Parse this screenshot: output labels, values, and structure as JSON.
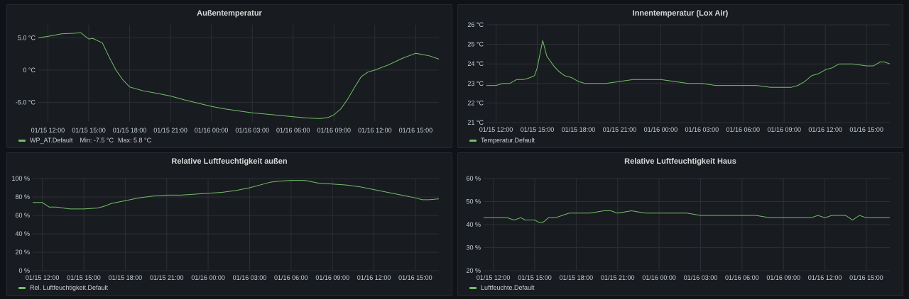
{
  "panels": [
    {
      "title": "Außentemperatur",
      "legend": "WP_AT.Default",
      "legend_min": "Min: -7.5 °C",
      "legend_max": "Max: 5.8 °C"
    },
    {
      "title": "Innentemperatur (Lox Air)",
      "legend": "Temperatur.Default"
    },
    {
      "title": "Relative Luftfeuchtigkeit außen",
      "legend": "Rel. Luftfeuchtigkeit.Default"
    },
    {
      "title": "Relative Luftfeuchtigkeit Haus",
      "legend": "Luftfeuchte.Default"
    }
  ],
  "chart_data": [
    {
      "type": "line",
      "title": "Außentemperatur",
      "xlabel": "",
      "ylabel": "",
      "x_ticks": [
        "01/15 12:00",
        "01/15 15:00",
        "01/15 18:00",
        "01/15 21:00",
        "01/16 00:00",
        "01/16 03:00",
        "01/16 06:00",
        "01/16 09:00",
        "01/16 12:00",
        "01/16 15:00"
      ],
      "y_ticks": [
        "5.0 °C",
        "0 °C",
        "-5.0 °C"
      ],
      "y_tick_values": [
        5,
        0,
        -5
      ],
      "xlim": [
        11.3,
        40.7
      ],
      "ylim": [
        -8,
        7
      ],
      "grid": true,
      "series": [
        {
          "name": "WP_AT.Default",
          "color": "#73bf69",
          "x": [
            11.3,
            12,
            13,
            14,
            14.4,
            15,
            15.3,
            16,
            16.5,
            17,
            17.5,
            18,
            19,
            20,
            21,
            22,
            23,
            24,
            25,
            26,
            27,
            28,
            29,
            30,
            31,
            32,
            32.6,
            33,
            33.5,
            34,
            34.5,
            35,
            35.5,
            36,
            37,
            38,
            38.5,
            39,
            39.5,
            40,
            40.7
          ],
          "y": [
            5,
            5.2,
            5.6,
            5.7,
            5.8,
            4.8,
            4.9,
            4.2,
            2,
            0,
            -1.5,
            -2.6,
            -3.2,
            -3.6,
            -4,
            -4.6,
            -5.1,
            -5.6,
            -6,
            -6.3,
            -6.6,
            -6.8,
            -7,
            -7.2,
            -7.4,
            -7.5,
            -7.3,
            -6.9,
            -6,
            -4.5,
            -2.7,
            -1,
            -0.3,
            0,
            0.8,
            1.8,
            2.2,
            2.6,
            2.4,
            2.2,
            1.7
          ]
        }
      ]
    },
    {
      "type": "line",
      "title": "Innentemperatur (Lox Air)",
      "xlabel": "",
      "ylabel": "",
      "x_ticks": [
        "01/15 12:00",
        "01/15 15:00",
        "01/15 18:00",
        "01/15 21:00",
        "01/16 00:00",
        "01/16 03:00",
        "01/16 06:00",
        "01/16 09:00",
        "01/16 12:00",
        "01/16 15:00"
      ],
      "y_ticks": [
        "26 °C",
        "25 °C",
        "24 °C",
        "23 °C",
        "22 °C",
        "21 °C"
      ],
      "y_tick_values": [
        26,
        25,
        24,
        23,
        22,
        21
      ],
      "xlim": [
        11.3,
        40.7
      ],
      "ylim": [
        21,
        26
      ],
      "grid": true,
      "series": [
        {
          "name": "Temperatur.Default",
          "color": "#73bf69",
          "x": [
            11.3,
            12,
            12.5,
            13,
            13.5,
            14,
            14.5,
            14.8,
            15,
            15.4,
            15.7,
            16.2,
            16.6,
            17,
            17.5,
            18,
            18.5,
            19,
            20,
            21,
            22,
            23,
            24,
            25,
            26,
            27,
            28,
            29,
            30,
            31,
            32,
            33,
            33.5,
            34,
            34.5,
            35,
            35.5,
            36,
            36.5,
            37,
            38,
            39,
            39.5,
            40,
            40.3,
            40.7
          ],
          "y": [
            22.9,
            22.9,
            23,
            23,
            23.2,
            23.2,
            23.3,
            23.4,
            23.8,
            25.2,
            24.4,
            23.9,
            23.6,
            23.4,
            23.3,
            23.1,
            23,
            23,
            23,
            23.1,
            23.2,
            23.2,
            23.2,
            23.1,
            23,
            23,
            22.9,
            22.9,
            22.9,
            22.9,
            22.8,
            22.8,
            22.8,
            22.9,
            23.1,
            23.4,
            23.5,
            23.7,
            23.8,
            24,
            24,
            23.9,
            23.9,
            24.1,
            24.1,
            24
          ]
        }
      ]
    },
    {
      "type": "line",
      "title": "Relative Luftfeuchtigkeit außen",
      "xlabel": "",
      "ylabel": "",
      "x_ticks": [
        "01/15 12:00",
        "01/15 15:00",
        "01/15 18:00",
        "01/15 21:00",
        "01/16 00:00",
        "01/16 03:00",
        "01/16 06:00",
        "01/16 09:00",
        "01/16 12:00",
        "01/16 15:00"
      ],
      "y_ticks": [
        "100 %",
        "80 %",
        "60 %",
        "40 %",
        "20 %",
        "0 %"
      ],
      "y_tick_values": [
        100,
        80,
        60,
        40,
        20,
        0
      ],
      "xlim": [
        11.3,
        40.7
      ],
      "ylim": [
        0,
        100
      ],
      "grid": true,
      "series": [
        {
          "name": "Rel. Luftfeuchtigkeit.Default",
          "color": "#73bf69",
          "x": [
            11.3,
            12,
            12.5,
            13,
            14,
            15,
            16,
            16.5,
            17,
            18,
            19,
            20,
            21,
            22,
            23,
            24,
            25,
            26,
            27,
            28,
            28.5,
            29,
            30,
            31,
            32,
            33,
            34,
            35,
            36,
            37,
            38,
            39,
            39.5,
            40,
            40.7
          ],
          "y": [
            74,
            74,
            69,
            69,
            67,
            67,
            68,
            70,
            73,
            76,
            79,
            81,
            82,
            82,
            83,
            84,
            85,
            87,
            90,
            94,
            96,
            97,
            98,
            98,
            95,
            94,
            93,
            91,
            88,
            85,
            82,
            79,
            77,
            77,
            78
          ]
        }
      ]
    },
    {
      "type": "line",
      "title": "Relative Luftfeuchtigkeit Haus",
      "xlabel": "",
      "ylabel": "",
      "x_ticks": [
        "01/15 12:00",
        "01/15 15:00",
        "01/15 18:00",
        "01/15 21:00",
        "01/16 00:00",
        "01/16 03:00",
        "01/16 06:00",
        "01/16 09:00",
        "01/16 12:00",
        "01/16 15:00"
      ],
      "y_ticks": [
        "60 %",
        "50 %",
        "40 %",
        "30 %",
        "20 %"
      ],
      "y_tick_values": [
        60,
        50,
        40,
        30,
        20
      ],
      "xlim": [
        11.3,
        40.7
      ],
      "ylim": [
        20,
        60
      ],
      "grid": true,
      "series": [
        {
          "name": "Luftfeuchte.Default",
          "color": "#73bf69",
          "x": [
            11.3,
            12,
            13,
            13.5,
            14,
            14.3,
            14.6,
            15,
            15.3,
            15.6,
            16,
            16.5,
            17,
            17.5,
            18,
            19,
            20,
            20.5,
            21,
            22,
            23,
            24,
            25,
            26,
            27,
            28,
            29,
            30,
            31,
            32,
            33,
            34,
            35,
            35.5,
            36,
            36.5,
            37,
            37.5,
            38,
            38.5,
            39,
            40,
            40.7
          ],
          "y": [
            43,
            43,
            43,
            42,
            43,
            42,
            42,
            42,
            41,
            41,
            43,
            43,
            44,
            45,
            45,
            45,
            46,
            46,
            45,
            46,
            45,
            45,
            45,
            45,
            44,
            44,
            44,
            44,
            44,
            43,
            43,
            43,
            43,
            44,
            43,
            44,
            44,
            44,
            42,
            44,
            43,
            43,
            43
          ]
        }
      ]
    }
  ]
}
